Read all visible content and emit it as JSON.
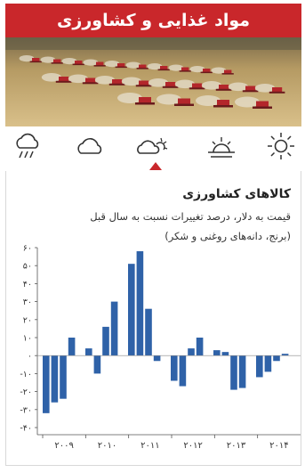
{
  "header": {
    "title": "مواد غذایی و کشاورزی"
  },
  "weather_icons": [
    "rain-cloud-icon",
    "cloud-icon",
    "partly-cloudy-icon",
    "sunrise-icon",
    "sun-icon"
  ],
  "selected_weather_index": 2,
  "colors": {
    "header": "#c9272b",
    "bars": "#2f62a8",
    "selector": "#c9272b"
  },
  "chart_data": {
    "type": "bar",
    "title": "کالاهای کشاورزی",
    "subtitle": "قیمت به دلار، درصد تغییرات نسبت به سال قبل",
    "subtitle2": "(برنج، دانه‌های روغنی و شکر)",
    "ylim": [
      -40,
      60
    ],
    "yticks": [
      {
        "value": 60,
        "label": "۶۰"
      },
      {
        "value": 50,
        "label": "۵۰"
      },
      {
        "value": 40,
        "label": "۴۰"
      },
      {
        "value": 30,
        "label": "۳۰"
      },
      {
        "value": 20,
        "label": "۲۰"
      },
      {
        "value": 10,
        "label": "۱۰"
      },
      {
        "value": 0,
        "label": "۰"
      },
      {
        "value": -10,
        "label": "-۱۰"
      },
      {
        "value": -20,
        "label": "-۲۰"
      },
      {
        "value": -30,
        "label": "-۳۰"
      },
      {
        "value": -40,
        "label": "-۴۰"
      }
    ],
    "xlabels": [
      {
        "label": "۲۰۰۹",
        "year_index": 0
      },
      {
        "label": "۲۰۱۰",
        "year_index": 1
      },
      {
        "label": "۲۰۱۱",
        "year_index": 2
      },
      {
        "label": "۲۰۱۲",
        "year_index": 3
      },
      {
        "label": "۲۰۱۳",
        "year_index": 4
      },
      {
        "label": "۲۰۱۴",
        "year_index": 5
      }
    ],
    "values": [
      -32,
      -26,
      -24,
      10,
      0,
      4,
      -10,
      16,
      30,
      0,
      51,
      58,
      26,
      -3,
      0,
      -14,
      -17,
      4,
      10,
      0,
      3,
      2,
      -19,
      -18,
      0,
      -12,
      -9,
      -3,
      1
    ]
  }
}
